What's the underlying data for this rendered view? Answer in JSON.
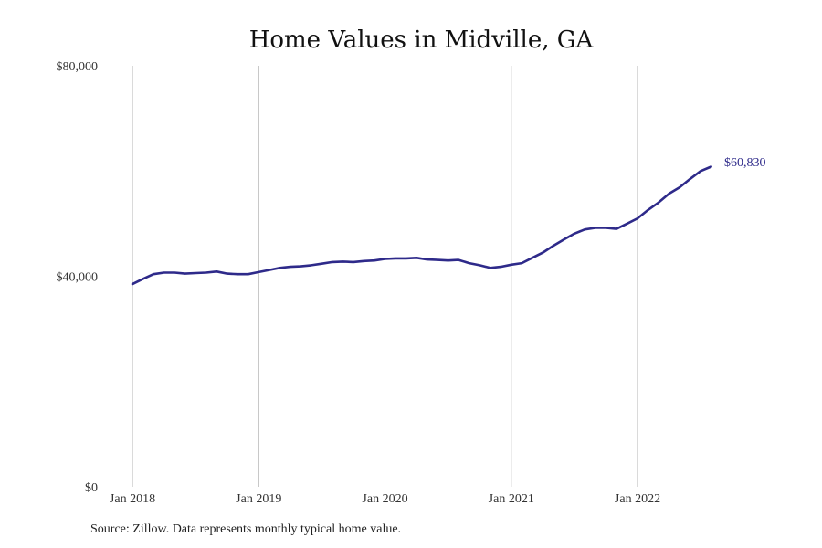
{
  "chart_data": {
    "type": "line",
    "title": "Home Values in Midville, GA",
    "xlabel": "",
    "ylabel": "",
    "ylim": [
      0,
      80000
    ],
    "y_ticks": [
      0,
      40000,
      80000
    ],
    "y_tick_labels": [
      "$0",
      "$40,000",
      "$80,000"
    ],
    "x_range": [
      "2018-01",
      "2022-09"
    ],
    "x_ticks": [
      "2018-01",
      "2019-01",
      "2020-01",
      "2021-01",
      "2022-01"
    ],
    "x_tick_labels": [
      "Jan 2018",
      "Jan 2019",
      "Jan 2020",
      "Jan 2021",
      "Jan 2022"
    ],
    "grid": "vertical at x ticks",
    "legend": "none",
    "series_color": "#2e2a8a",
    "series": [
      {
        "x": [
          "2018-01",
          "2018-02",
          "2018-03",
          "2018-04",
          "2018-05",
          "2018-06",
          "2018-07",
          "2018-08",
          "2018-09",
          "2018-10",
          "2018-11",
          "2018-12",
          "2019-01",
          "2019-02",
          "2019-03",
          "2019-04",
          "2019-05",
          "2019-06",
          "2019-07",
          "2019-08",
          "2019-09",
          "2019-10",
          "2019-11",
          "2019-12",
          "2020-01",
          "2020-02",
          "2020-03",
          "2020-04",
          "2020-05",
          "2020-06",
          "2020-07",
          "2020-08",
          "2020-09",
          "2020-10",
          "2020-11",
          "2020-12",
          "2021-01",
          "2021-02",
          "2021-03",
          "2021-04",
          "2021-05",
          "2021-06",
          "2021-07",
          "2021-08",
          "2021-09",
          "2021-10",
          "2021-11",
          "2021-12",
          "2022-01",
          "2022-02",
          "2022-03",
          "2022-04",
          "2022-05",
          "2022-06",
          "2022-07",
          "2022-08"
        ],
        "values": [
          38500,
          39500,
          40400,
          40700,
          40700,
          40500,
          40600,
          40700,
          40900,
          40500,
          40400,
          40400,
          40800,
          41200,
          41600,
          41800,
          41900,
          42100,
          42400,
          42700,
          42800,
          42700,
          42900,
          43000,
          43300,
          43400,
          43400,
          43500,
          43200,
          43100,
          43000,
          43100,
          42500,
          42100,
          41600,
          41800,
          42200,
          42500,
          43500,
          44500,
          45800,
          47000,
          48100,
          48900,
          49200,
          49200,
          49000,
          50000,
          51000,
          52600,
          54000,
          55700,
          56900,
          58500,
          60000,
          60830
        ]
      }
    ],
    "end_label": "$60,830"
  },
  "source_text": "Source: Zillow. Data represents monthly typical home value."
}
